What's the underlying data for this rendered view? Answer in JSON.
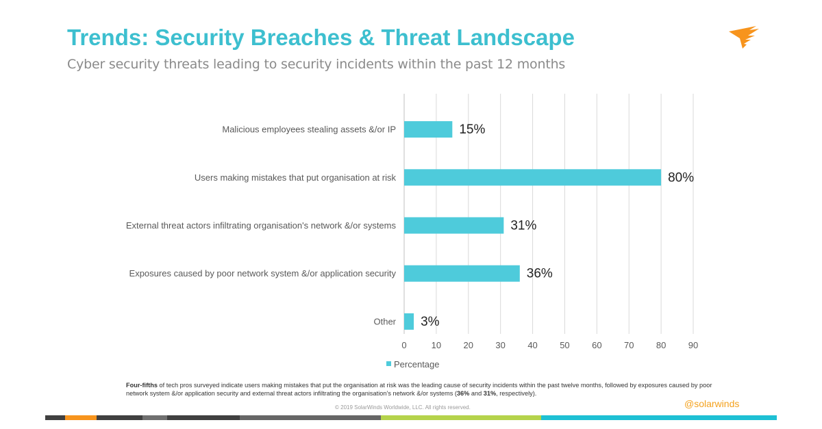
{
  "header": {
    "title": "Trends: Security Breaches & Threat Landscape",
    "subtitle": "Cyber security threats leading to security incidents within the past 12 months"
  },
  "chart_data": {
    "type": "bar",
    "orientation": "horizontal",
    "categories": [
      "Malicious employees stealing assets &/or IP",
      "Users making mistakes that put organisation at risk",
      "External threat actors infiltrating organisation's network &/or systems",
      "Exposures caused by poor network system &/or application security",
      "Other"
    ],
    "values": [
      15,
      80,
      31,
      36,
      3
    ],
    "data_labels": [
      "15%",
      "80%",
      "31%",
      "36%",
      "3%"
    ],
    "xticks": [
      0,
      10,
      20,
      30,
      40,
      50,
      60,
      70,
      80,
      90
    ],
    "xlim": [
      0,
      90
    ],
    "grid": true,
    "legend": {
      "entries": [
        "Percentage"
      ],
      "placement": "bottom-left"
    },
    "color": "#4ecbdb"
  },
  "footer": {
    "note_bold": "Four-fifths",
    "note_1": " of tech pros surveyed indicate users making mistakes that put the organisation at risk was the leading cause of security incidents within the past twelve months, followed by exposures caused by poor network system &/or application security and external threat actors infiltrating the organisation’s network &/or systems (",
    "note_b2": "36%",
    "note_2": " and ",
    "note_b3": "31%",
    "note_3": ", respectively).",
    "copyright": "© 2019 SolarWinds Worldwide, LLC.  All rights reserved.",
    "handle": "@solarwinds"
  },
  "colors": {
    "accent": "#3dbfcf",
    "orange": "#f4a11c",
    "green": "#b5d34b",
    "cyan": "#1ec0d4"
  }
}
